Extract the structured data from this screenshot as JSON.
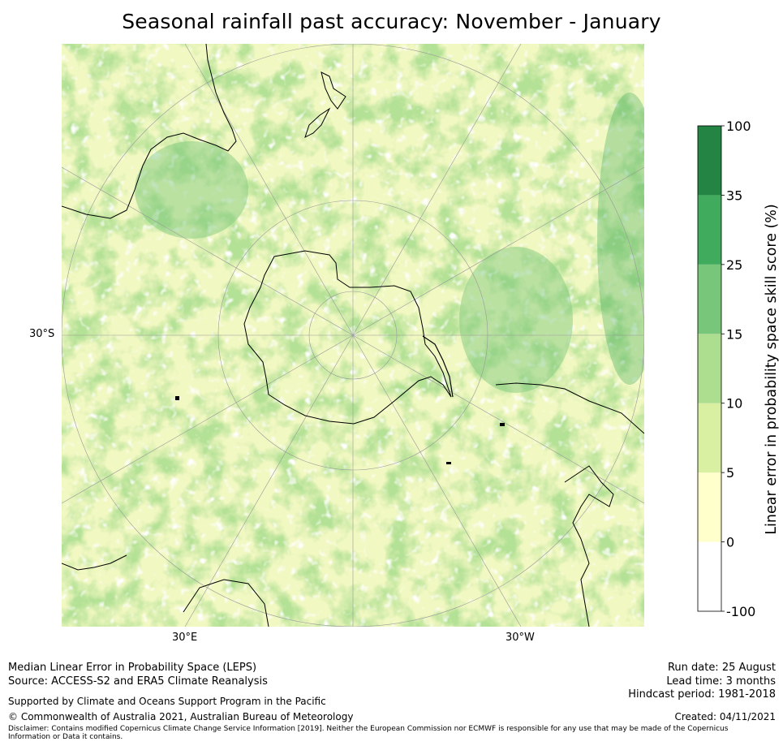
{
  "title": "Seasonal rainfall past accuracy: November - January",
  "map": {
    "projection": "south-polar-stereographic",
    "lat_label": "30°S",
    "lon_labels": {
      "east": "30°E",
      "west": "30°W"
    },
    "background_color": "#ffffff",
    "coastline_color": "#000000",
    "gridline_color": "#999999"
  },
  "colorbar": {
    "title": "Linear error in probability space skill score (%)",
    "boundaries": [
      "-100",
      "0",
      "5",
      "10",
      "15",
      "25",
      "35",
      "100"
    ],
    "colors": [
      "#ffffff",
      "#ffffcc",
      "#d9f0a3",
      "#addd8e",
      "#78c679",
      "#41ab5d",
      "#238443"
    ]
  },
  "footer": {
    "method": "Median Linear Error in Probability Space (LEPS)",
    "source": "Source: ACCESS-S2 and ERA5 Climate Reanalysis",
    "support": "Supported by Climate and Oceans Support Program in the Pacific",
    "copyright": "© Commonwealth of Australia 2021, Australian Bureau of Meteorology",
    "disclaimer_line1": "Disclaimer: Contains modified Copernicus Climate Change Service Information [2019]. Neither the European Commission nor ECMWF is responsible for any use that may be made of the Copernicus",
    "disclaimer_line2": "Information or Data it contains.",
    "run_date": "Run date: 25 August",
    "lead_time": "Lead time: 3 months",
    "hindcast": "Hindcast period: 1981-2018",
    "created": "Created: 04/11/2021"
  }
}
